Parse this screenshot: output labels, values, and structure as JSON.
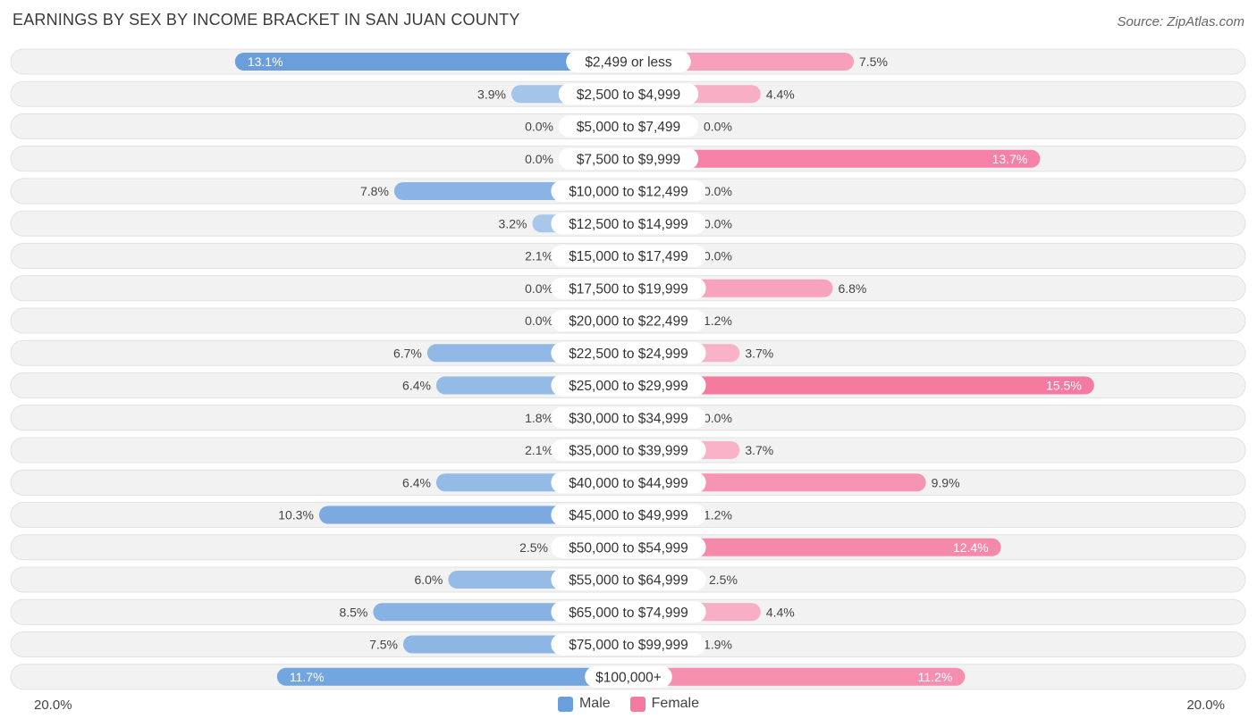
{
  "chart_data": {
    "type": "bar",
    "orientation": "horizontal-diverging",
    "title": "EARNINGS BY SEX BY INCOME BRACKET IN SAN JUAN COUNTY",
    "source": "Source: ZipAtlas.com",
    "categories": [
      "$2,499 or less",
      "$2,500 to $4,999",
      "$5,000 to $7,499",
      "$7,500 to $9,999",
      "$10,000 to $12,499",
      "$12,500 to $14,999",
      "$15,000 to $17,499",
      "$17,500 to $19,999",
      "$20,000 to $22,499",
      "$22,500 to $24,999",
      "$25,000 to $29,999",
      "$30,000 to $34,999",
      "$35,000 to $39,999",
      "$40,000 to $44,999",
      "$45,000 to $49,999",
      "$50,000 to $54,999",
      "$55,000 to $64,999",
      "$65,000 to $74,999",
      "$75,000 to $99,999",
      "$100,000+"
    ],
    "series": [
      {
        "name": "Male",
        "color": "#6a9fdc",
        "values": [
          13.1,
          3.9,
          0.0,
          0.0,
          7.8,
          3.2,
          2.1,
          0.0,
          0.0,
          6.7,
          6.4,
          1.8,
          2.1,
          6.4,
          10.3,
          2.5,
          6.0,
          8.5,
          7.5,
          11.7
        ],
        "labels": [
          "13.1%",
          "3.9%",
          "0.0%",
          "0.0%",
          "7.8%",
          "3.2%",
          "2.1%",
          "0.0%",
          "0.0%",
          "6.7%",
          "6.4%",
          "1.8%",
          "2.1%",
          "6.4%",
          "10.3%",
          "2.5%",
          "6.0%",
          "8.5%",
          "7.5%",
          "11.7%"
        ]
      },
      {
        "name": "Female",
        "color": "#f47aa0",
        "values": [
          7.5,
          4.4,
          0.0,
          13.7,
          0.0,
          0.0,
          0.0,
          6.8,
          1.2,
          3.7,
          15.5,
          0.0,
          3.7,
          9.9,
          1.2,
          12.4,
          2.5,
          4.4,
          1.9,
          11.2
        ],
        "labels": [
          "7.5%",
          "4.4%",
          "0.0%",
          "13.7%",
          "0.0%",
          "0.0%",
          "0.0%",
          "6.8%",
          "1.2%",
          "3.7%",
          "15.5%",
          "0.0%",
          "3.7%",
          "9.9%",
          "1.2%",
          "12.4%",
          "2.5%",
          "4.4%",
          "1.9%",
          "11.2%"
        ]
      }
    ],
    "axis_max": 20.0,
    "axis_left_label": "20.0%",
    "axis_right_label": "20.0%",
    "legend": [
      "Male",
      "Female"
    ],
    "legend_position": "bottom-center"
  }
}
